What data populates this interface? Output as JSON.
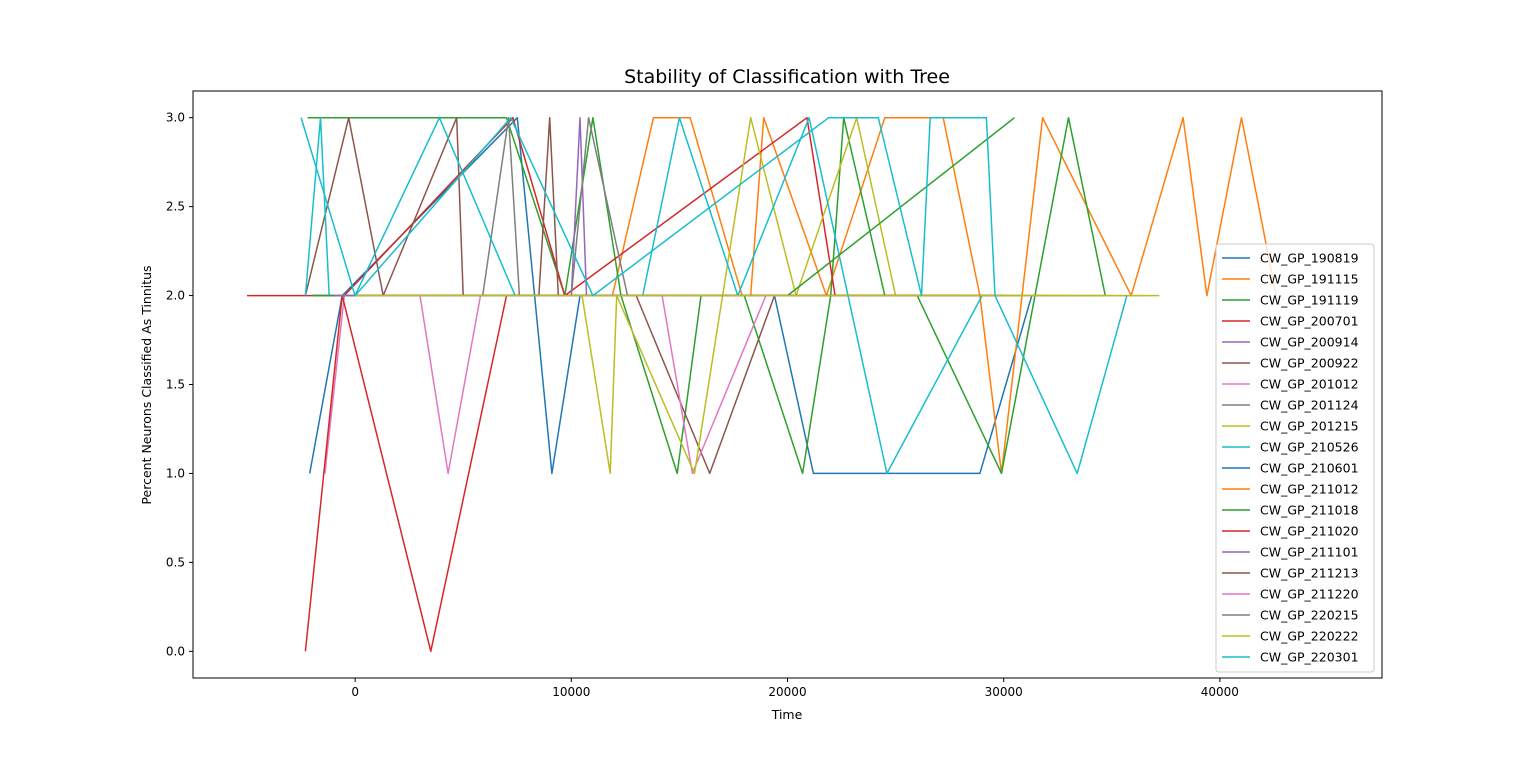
{
  "chart_data": {
    "type": "line",
    "title": "Stability of Classification with Tree",
    "xlabel": "Time",
    "ylabel": "Percent Neurons Classified As Tinnitus",
    "xlim": [
      -7500,
      47500
    ],
    "ylim": [
      -0.15,
      3.15
    ],
    "xticks": [
      0,
      10000,
      20000,
      30000,
      40000
    ],
    "xtick_labels": [
      "0",
      "10000",
      "20000",
      "30000",
      "40000"
    ],
    "yticks": [
      0.0,
      0.5,
      1.0,
      1.5,
      2.0,
      2.5,
      3.0
    ],
    "ytick_labels": [
      "0.0",
      "0.5",
      "1.0",
      "1.5",
      "2.0",
      "2.5",
      "3.0"
    ],
    "grid": false,
    "legend_position": "right",
    "series": [
      {
        "name": "CW_GP_190819",
        "color": "#1f77b4",
        "x": [
          -2100,
          -600,
          7500,
          9100,
          10400,
          19400,
          21200,
          24600,
          28900,
          31300,
          34700
        ],
        "y": [
          1,
          2,
          3,
          1,
          2,
          2,
          1,
          1,
          1,
          2,
          2
        ]
      },
      {
        "name": "CW_GP_191115",
        "color": "#ff7f0e",
        "x": [
          0,
          11900,
          13800,
          15500,
          17900,
          18300,
          18900,
          21800,
          24500,
          27200,
          28900,
          29900,
          31800,
          35900,
          38300,
          39400,
          41000,
          42600
        ],
        "y": [
          2,
          2,
          3,
          3,
          2,
          2,
          3,
          2,
          3,
          3,
          2,
          1,
          3,
          2,
          3,
          2,
          3,
          2
        ]
      },
      {
        "name": "CW_GP_191119",
        "color": "#2ca02c",
        "x": [
          -2200,
          7000,
          9700,
          11000,
          12300,
          14900,
          16000,
          18000,
          20700,
          22000,
          22600,
          24500,
          26000,
          29900,
          33000,
          34700
        ],
        "y": [
          3,
          3,
          2,
          3,
          2,
          1,
          2,
          2,
          1,
          2,
          3,
          2,
          2,
          1,
          3,
          2
        ]
      },
      {
        "name": "CW_GP_200701",
        "color": "#d62728",
        "x": [
          -5000,
          -500,
          7300,
          9700,
          20900,
          22200,
          28000
        ],
        "y": [
          2,
          2,
          3,
          2,
          3,
          2,
          2
        ]
      },
      {
        "name": "CW_GP_200914",
        "color": "#9467bd",
        "x": [
          -2000,
          -400,
          3800,
          10000,
          10400,
          10700,
          13000
        ],
        "y": [
          2,
          2,
          2,
          2,
          3,
          2,
          2
        ]
      },
      {
        "name": "CW_GP_200922",
        "color": "#8c564b",
        "x": [
          -2300,
          -300,
          1300,
          4700,
          5000,
          8500,
          9000,
          9400,
          13000,
          16400,
          19400,
          25000
        ],
        "y": [
          2,
          3,
          2,
          3,
          2,
          2,
          3,
          2,
          2,
          1,
          2,
          2
        ]
      },
      {
        "name": "CW_GP_201012",
        "color": "#e377c2",
        "x": [
          -1400,
          -500,
          3000,
          4300,
          5800,
          14200,
          15600,
          19000,
          24000
        ],
        "y": [
          1,
          2,
          2,
          1,
          2,
          2,
          1,
          2,
          2
        ]
      },
      {
        "name": "CW_GP_201124",
        "color": "#7f7f7f",
        "x": [
          -2000,
          5900,
          7100,
          7600,
          10000,
          10800,
          12600,
          14000
        ],
        "y": [
          2,
          2,
          3,
          2,
          2,
          3,
          2,
          2
        ]
      },
      {
        "name": "CW_GP_201215",
        "color": "#bcbd22",
        "x": [
          -1800,
          10500,
          11800,
          12100,
          15700,
          18300,
          20400,
          23200,
          25000,
          37200
        ],
        "y": [
          2,
          2,
          1,
          2,
          1,
          3,
          2,
          3,
          2,
          2
        ]
      },
      {
        "name": "CW_GP_210526",
        "color": "#17becf",
        "x": [
          -2300,
          -1600,
          -1200,
          0,
          3900,
          7400,
          8000,
          13300,
          15000,
          17700,
          21000,
          24600,
          29000,
          31000
        ],
        "y": [
          2,
          3,
          2,
          2,
          3,
          2,
          2,
          2,
          3,
          2,
          3,
          1,
          2,
          2
        ]
      },
      {
        "name": "CW_GP_210601",
        "color": "#1f77b4",
        "x": [
          -2000,
          9000,
          32000
        ],
        "y": [
          2,
          2,
          2
        ]
      },
      {
        "name": "CW_GP_211012",
        "color": "#ff7f0e",
        "x": [
          -2000,
          14000,
          33000
        ],
        "y": [
          2,
          2,
          2
        ]
      },
      {
        "name": "CW_GP_211018",
        "color": "#2ca02c",
        "x": [
          -2000,
          5200,
          20000,
          30500
        ],
        "y": [
          2,
          2,
          2,
          3
        ]
      },
      {
        "name": "CW_GP_211020",
        "color": "#d62728",
        "x": [
          -2300,
          -600,
          3500,
          7000,
          7500,
          30000
        ],
        "y": [
          0,
          2,
          0,
          2,
          2,
          2
        ]
      },
      {
        "name": "CW_GP_211101",
        "color": "#9467bd",
        "x": [
          -1000,
          15000,
          25000
        ],
        "y": [
          2,
          2,
          2
        ]
      },
      {
        "name": "CW_GP_211213",
        "color": "#8c564b",
        "x": [
          0,
          15000,
          30000
        ],
        "y": [
          2,
          2,
          2
        ]
      },
      {
        "name": "CW_GP_211220",
        "color": "#e377c2",
        "x": [
          0,
          20000
        ],
        "y": [
          2,
          2
        ]
      },
      {
        "name": "CW_GP_220215",
        "color": "#7f7f7f",
        "x": [
          0,
          20000
        ],
        "y": [
          2,
          2
        ]
      },
      {
        "name": "CW_GP_220222",
        "color": "#bcbd22",
        "x": [
          0,
          36500
        ],
        "y": [
          2,
          2
        ]
      },
      {
        "name": "CW_GP_220301",
        "color": "#17becf",
        "x": [
          -2500,
          0,
          7200,
          11000,
          21900,
          24200,
          26200,
          26600,
          29200,
          29600,
          33400,
          35700
        ],
        "y": [
          3,
          2,
          3,
          2,
          3,
          3,
          2,
          3,
          3,
          2,
          1,
          2
        ]
      }
    ]
  }
}
